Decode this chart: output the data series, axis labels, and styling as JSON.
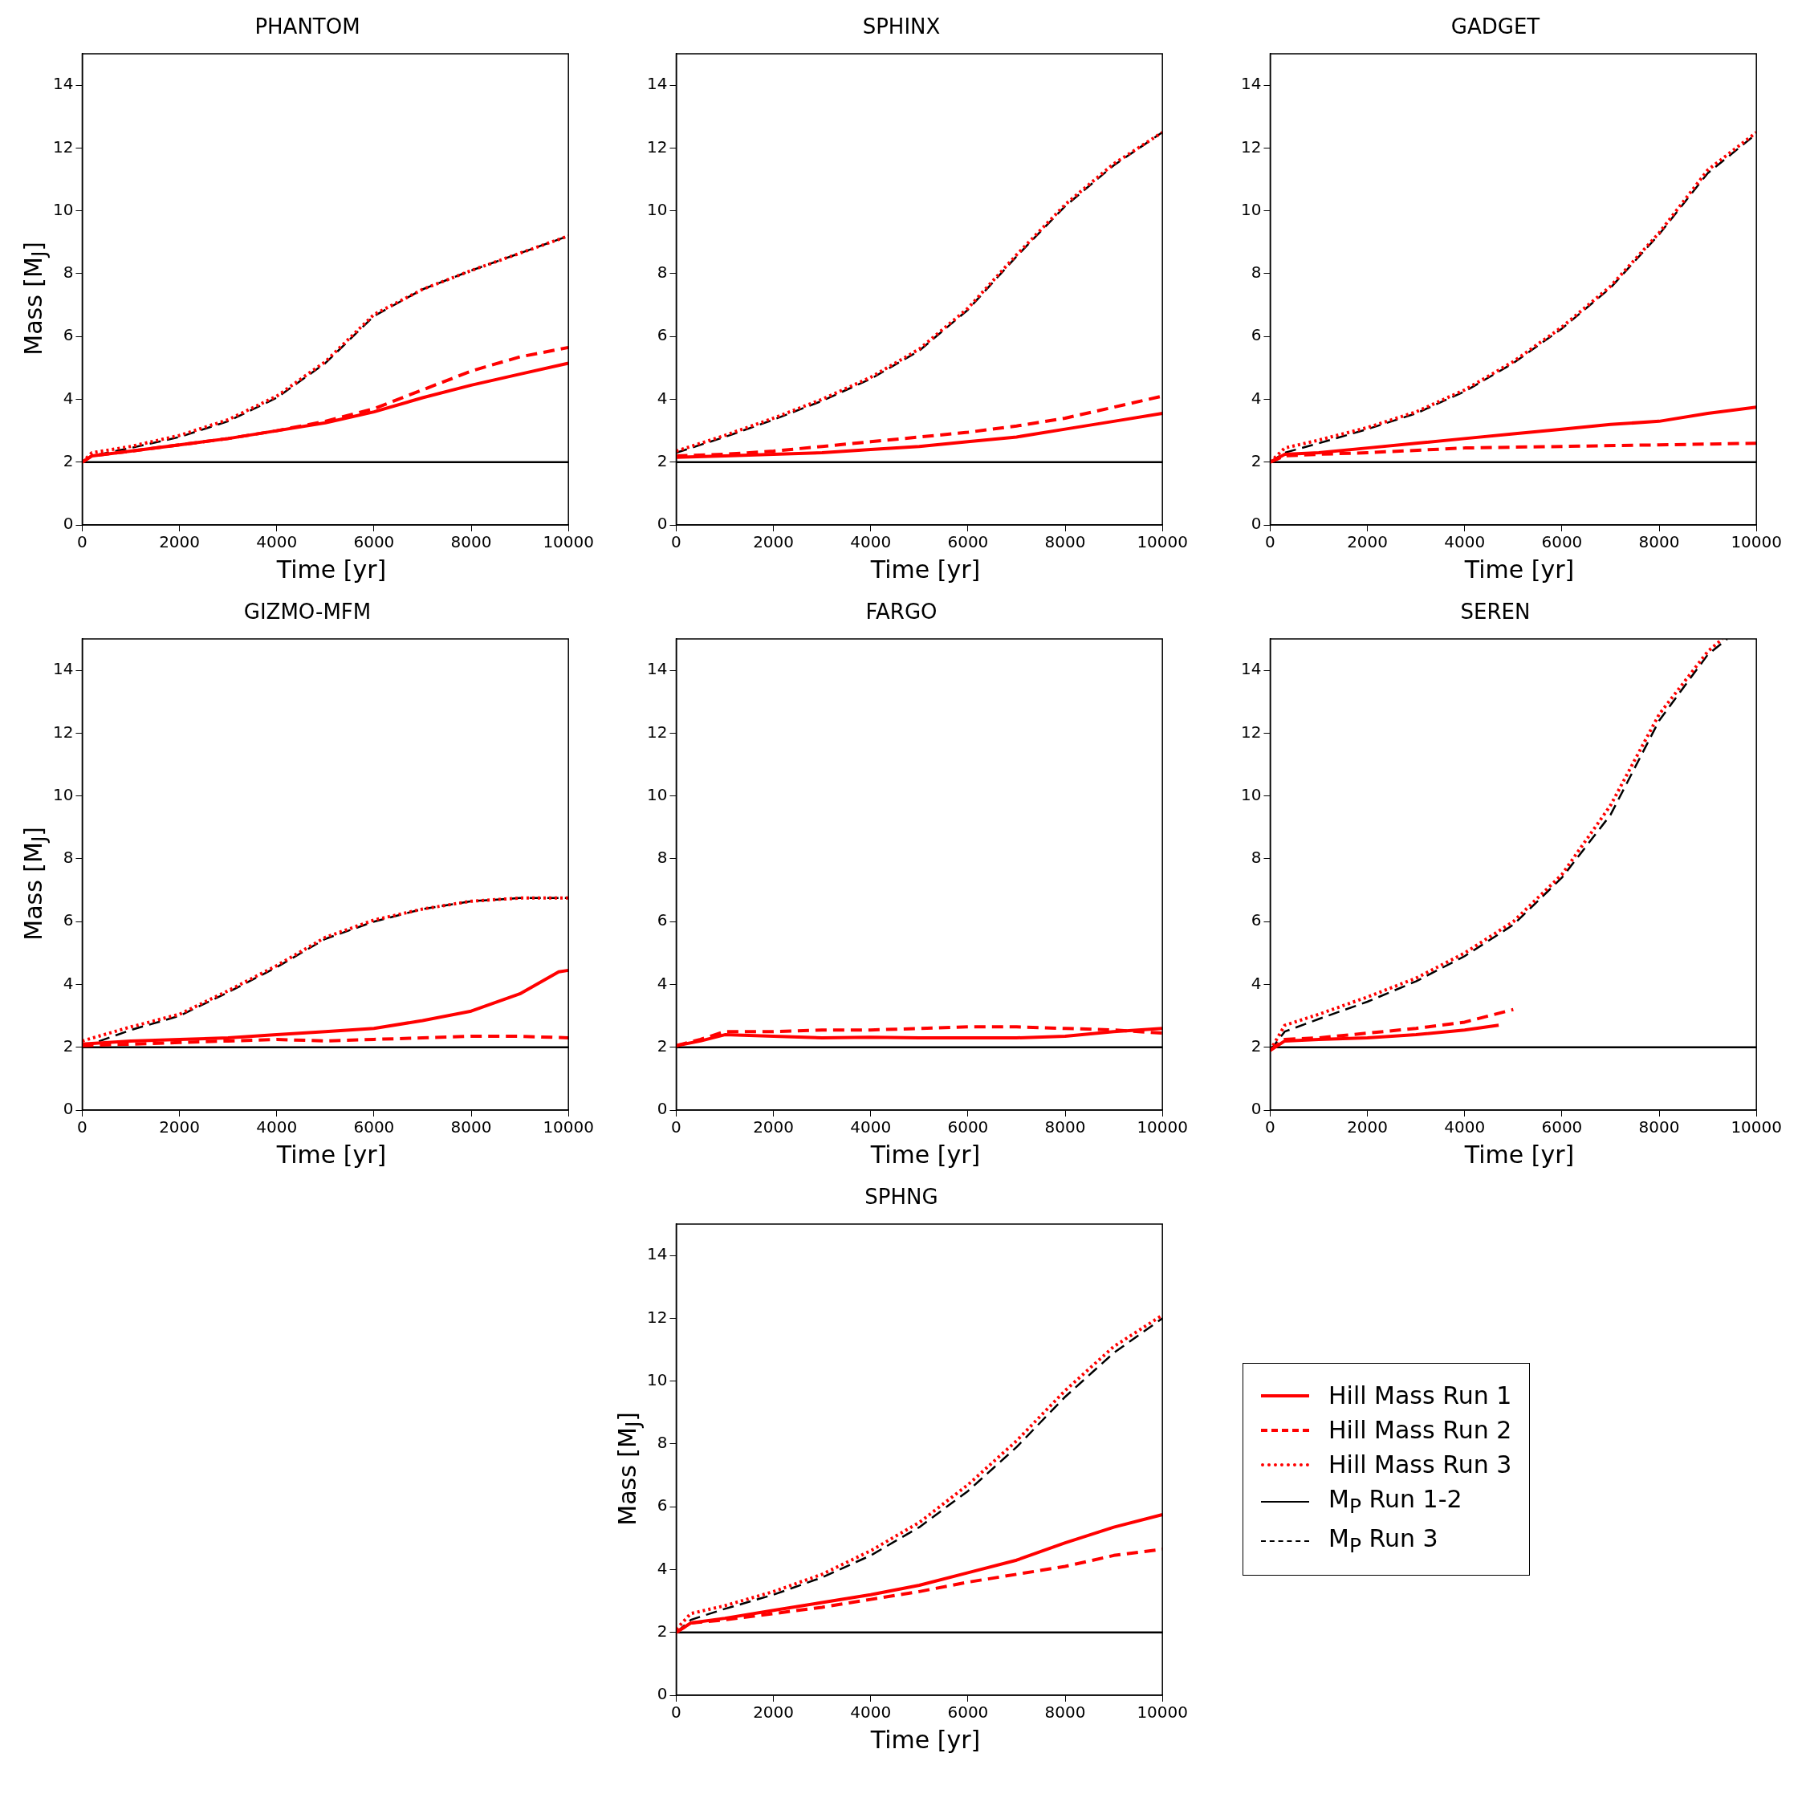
{
  "chart_data": [
    {
      "type": "line",
      "title": "PHANTOM",
      "xlabel": "Time [yr]",
      "ylabel": "Mass [M$_{J}$]",
      "xlim": [
        0,
        10000
      ],
      "ylim": [
        0,
        15
      ],
      "xticks": [
        0,
        2000,
        4000,
        6000,
        8000,
        10000
      ],
      "yticks": [
        0,
        2,
        4,
        6,
        8,
        10,
        12,
        14
      ],
      "grid": false,
      "series": [
        {
          "color": "#ff0000",
          "line_style": "solid",
          "x": [
            0,
            200,
            1000,
            2000,
            3000,
            4000,
            5000,
            6000,
            7000,
            8000,
            9000,
            10000
          ],
          "values": [
            2.0,
            2.2,
            2.35,
            2.55,
            2.75,
            3.0,
            3.25,
            3.6,
            4.05,
            4.45,
            4.8,
            5.15
          ]
        },
        {
          "color": "#ff0000",
          "line_style": "dashed",
          "x": [
            0,
            200,
            1000,
            2000,
            3000,
            4000,
            5000,
            6000,
            7000,
            8000,
            9000,
            10000
          ],
          "values": [
            2.0,
            2.2,
            2.35,
            2.55,
            2.75,
            3.0,
            3.3,
            3.7,
            4.3,
            4.9,
            5.35,
            5.65
          ]
        },
        {
          "color": "#ff0000",
          "line_style": "dotted",
          "x": [
            0,
            200,
            1000,
            2000,
            3000,
            4000,
            5000,
            6000,
            7000,
            8000,
            9000,
            10000
          ],
          "values": [
            2.0,
            2.3,
            2.5,
            2.85,
            3.35,
            4.1,
            5.2,
            6.7,
            7.5,
            8.1,
            8.65,
            9.2
          ]
        },
        {
          "color": "#000000",
          "line_style": "solid",
          "x": [
            0,
            10000
          ],
          "values": [
            2,
            2
          ]
        },
        {
          "color": "#000000",
          "line_style": "dashed",
          "x": [
            0,
            200,
            1000,
            2000,
            3000,
            4000,
            5000,
            6000,
            7000,
            8000,
            9000,
            10000
          ],
          "values": [
            2.0,
            2.2,
            2.45,
            2.8,
            3.3,
            4.05,
            5.15,
            6.65,
            7.5,
            8.1,
            8.65,
            9.2
          ]
        }
      ]
    },
    {
      "type": "line",
      "title": "SPHINX",
      "xlabel": "Time [yr]",
      "xlim": [
        0,
        10000
      ],
      "ylim": [
        0,
        15
      ],
      "xticks": [
        0,
        2000,
        4000,
        6000,
        8000,
        10000
      ],
      "yticks": [
        0,
        2,
        4,
        6,
        8,
        10,
        12,
        14
      ],
      "grid": false,
      "series": [
        {
          "color": "#ff0000",
          "line_style": "solid",
          "x": [
            0,
            1000,
            2000,
            3000,
            4000,
            5000,
            6000,
            7000,
            8000,
            9000,
            10000
          ],
          "values": [
            2.15,
            2.2,
            2.25,
            2.3,
            2.4,
            2.5,
            2.65,
            2.8,
            3.05,
            3.3,
            3.55
          ]
        },
        {
          "color": "#ff0000",
          "line_style": "dashed",
          "x": [
            0,
            1000,
            2000,
            3000,
            4000,
            5000,
            6000,
            7000,
            8000,
            9000,
            10000
          ],
          "values": [
            2.2,
            2.25,
            2.35,
            2.5,
            2.65,
            2.8,
            2.95,
            3.15,
            3.4,
            3.75,
            4.1
          ]
        },
        {
          "color": "#ff0000",
          "line_style": "dotted",
          "x": [
            0,
            1000,
            2000,
            3000,
            4000,
            5000,
            6000,
            7000,
            8000,
            9000,
            10000
          ],
          "values": [
            2.35,
            2.85,
            3.4,
            4.0,
            4.7,
            5.6,
            6.9,
            8.6,
            10.2,
            11.5,
            12.5
          ]
        },
        {
          "color": "#000000",
          "line_style": "solid",
          "x": [
            0,
            10000
          ],
          "values": [
            2,
            2
          ]
        },
        {
          "color": "#000000",
          "line_style": "dashed",
          "x": [
            0,
            1000,
            2000,
            3000,
            4000,
            5000,
            6000,
            7000,
            8000,
            9000,
            10000
          ],
          "values": [
            2.3,
            2.8,
            3.35,
            3.95,
            4.65,
            5.55,
            6.85,
            8.55,
            10.15,
            11.45,
            12.5
          ]
        }
      ]
    },
    {
      "type": "line",
      "title": "GADGET",
      "xlabel": "Time [yr]",
      "xlim": [
        0,
        10000
      ],
      "ylim": [
        0,
        15
      ],
      "xticks": [
        0,
        2000,
        4000,
        6000,
        8000,
        10000
      ],
      "yticks": [
        0,
        2,
        4,
        6,
        8,
        10,
        12,
        14
      ],
      "grid": false,
      "series": [
        {
          "color": "#ff0000",
          "line_style": "solid",
          "x": [
            0,
            300,
            1000,
            2000,
            3000,
            4000,
            5000,
            6000,
            7000,
            8000,
            9000,
            10000
          ],
          "values": [
            2.0,
            2.25,
            2.3,
            2.45,
            2.6,
            2.75,
            2.9,
            3.05,
            3.2,
            3.3,
            3.55,
            3.75
          ]
        },
        {
          "color": "#ff0000",
          "line_style": "dashed",
          "x": [
            0,
            300,
            1000,
            2000,
            4000,
            6000,
            8000,
            10000
          ],
          "values": [
            2.0,
            2.2,
            2.25,
            2.3,
            2.45,
            2.5,
            2.55,
            2.6
          ]
        },
        {
          "color": "#ff0000",
          "line_style": "dotted",
          "x": [
            0,
            300,
            1000,
            2000,
            3000,
            4000,
            5000,
            6000,
            7000,
            8000,
            9000,
            10000
          ],
          "values": [
            2.0,
            2.45,
            2.7,
            3.1,
            3.6,
            4.3,
            5.2,
            6.3,
            7.6,
            9.3,
            11.3,
            12.5
          ]
        },
        {
          "color": "#000000",
          "line_style": "solid",
          "x": [
            0,
            10000
          ],
          "values": [
            2,
            2
          ]
        },
        {
          "color": "#000000",
          "line_style": "dashed",
          "x": [
            0,
            300,
            1000,
            2000,
            3000,
            4000,
            5000,
            6000,
            7000,
            8000,
            9000,
            10000
          ],
          "values": [
            2.0,
            2.3,
            2.6,
            3.05,
            3.55,
            4.25,
            5.15,
            6.25,
            7.55,
            9.25,
            11.2,
            12.45
          ]
        }
      ]
    },
    {
      "type": "line",
      "title": "GIZMO-MFM",
      "xlabel": "Time [yr]",
      "ylabel": "Mass [M$_{J}$]",
      "xlim": [
        0,
        10000
      ],
      "ylim": [
        0,
        15
      ],
      "xticks": [
        0,
        2000,
        4000,
        6000,
        8000,
        10000
      ],
      "yticks": [
        0,
        2,
        4,
        6,
        8,
        10,
        12,
        14
      ],
      "grid": false,
      "series": [
        {
          "color": "#ff0000",
          "line_style": "solid",
          "x": [
            0,
            1000,
            2000,
            3000,
            4000,
            5000,
            6000,
            7000,
            8000,
            9000,
            9800,
            10000
          ],
          "values": [
            2.1,
            2.2,
            2.25,
            2.3,
            2.4,
            2.5,
            2.6,
            2.85,
            3.15,
            3.7,
            4.4,
            4.45
          ]
        },
        {
          "color": "#ff0000",
          "line_style": "dashed",
          "x": [
            0,
            1000,
            2000,
            3000,
            4000,
            5000,
            6000,
            7000,
            8000,
            9000,
            10000
          ],
          "values": [
            2.05,
            2.1,
            2.15,
            2.2,
            2.25,
            2.2,
            2.25,
            2.3,
            2.35,
            2.35,
            2.3
          ]
        },
        {
          "color": "#ff0000",
          "line_style": "dotted",
          "x": [
            0,
            1000,
            2000,
            3000,
            4000,
            5000,
            6000,
            7000,
            8000,
            9000,
            10000
          ],
          "values": [
            2.2,
            2.65,
            3.05,
            3.8,
            4.6,
            5.5,
            6.05,
            6.4,
            6.65,
            6.75,
            6.75
          ]
        },
        {
          "color": "#000000",
          "line_style": "solid",
          "x": [
            0,
            10000
          ],
          "values": [
            2,
            2
          ]
        },
        {
          "color": "#000000",
          "line_style": "dashed",
          "x": [
            0,
            1000,
            2000,
            3000,
            4000,
            5000,
            6000,
            7000,
            8000,
            9000,
            10000
          ],
          "values": [
            2.0,
            2.55,
            3.0,
            3.75,
            4.55,
            5.45,
            6.0,
            6.4,
            6.65,
            6.75,
            6.75
          ]
        }
      ]
    },
    {
      "type": "line",
      "title": "FARGO",
      "xlabel": "Time [yr]",
      "xlim": [
        0,
        10000
      ],
      "ylim": [
        0,
        15
      ],
      "xticks": [
        0,
        2000,
        4000,
        6000,
        8000,
        10000
      ],
      "yticks": [
        0,
        2,
        4,
        6,
        8,
        10,
        12,
        14
      ],
      "grid": false,
      "series": [
        {
          "color": "#ff0000",
          "line_style": "solid",
          "x": [
            0,
            500,
            1000,
            2000,
            3000,
            4000,
            5000,
            6000,
            7000,
            8000,
            9000,
            10000
          ],
          "values": [
            2.05,
            2.2,
            2.4,
            2.35,
            2.3,
            2.32,
            2.3,
            2.3,
            2.3,
            2.35,
            2.5,
            2.6
          ]
        },
        {
          "color": "#ff0000",
          "line_style": "dashed",
          "x": [
            0,
            500,
            1000,
            2000,
            3000,
            4000,
            5000,
            6000,
            7000,
            8000,
            9000,
            10000
          ],
          "values": [
            2.05,
            2.25,
            2.5,
            2.5,
            2.55,
            2.55,
            2.6,
            2.65,
            2.65,
            2.6,
            2.55,
            2.45
          ]
        },
        {
          "color": "#000000",
          "line_style": "solid",
          "x": [
            0,
            10000
          ],
          "values": [
            2,
            2
          ]
        }
      ]
    },
    {
      "type": "line",
      "title": "SEREN",
      "xlabel": "Time [yr]",
      "xlim": [
        0,
        10000
      ],
      "ylim": [
        0,
        15
      ],
      "xticks": [
        0,
        2000,
        4000,
        6000,
        8000,
        10000
      ],
      "yticks": [
        0,
        2,
        4,
        6,
        8,
        10,
        12,
        14
      ],
      "grid": false,
      "series": [
        {
          "color": "#ff0000",
          "line_style": "solid",
          "x": [
            0,
            300,
            1000,
            2000,
            3000,
            4000,
            4700
          ],
          "values": [
            1.9,
            2.2,
            2.25,
            2.3,
            2.4,
            2.55,
            2.7
          ]
        },
        {
          "color": "#ff0000",
          "line_style": "dashed",
          "x": [
            0,
            300,
            1000,
            2000,
            3000,
            4000,
            5000
          ],
          "values": [
            1.9,
            2.25,
            2.3,
            2.45,
            2.6,
            2.8,
            3.2
          ]
        },
        {
          "color": "#ff0000",
          "line_style": "dotted",
          "x": [
            0,
            300,
            1000,
            2000,
            3000,
            4000,
            5000,
            6000,
            7000,
            8000,
            9000,
            9300
          ],
          "values": [
            1.9,
            2.7,
            3.05,
            3.6,
            4.2,
            5.0,
            6.0,
            7.5,
            9.7,
            12.6,
            14.6,
            15.0
          ]
        },
        {
          "color": "#000000",
          "line_style": "solid",
          "x": [
            0,
            10000
          ],
          "values": [
            2,
            2
          ]
        },
        {
          "color": "#000000",
          "line_style": "dashed",
          "x": [
            0,
            300,
            1000,
            2000,
            3000,
            4000,
            5000,
            6000,
            7000,
            8000,
            9000,
            9400
          ],
          "values": [
            1.9,
            2.5,
            2.9,
            3.45,
            4.1,
            4.9,
            5.9,
            7.4,
            9.4,
            12.4,
            14.5,
            15.0
          ]
        }
      ]
    },
    {
      "type": "line",
      "title": "SPHNG",
      "xlabel": "Time [yr]",
      "ylabel": "Mass [M$_{J}$]",
      "xlim": [
        0,
        10000
      ],
      "ylim": [
        0,
        15
      ],
      "xticks": [
        0,
        2000,
        4000,
        6000,
        8000,
        10000
      ],
      "yticks": [
        0,
        2,
        4,
        6,
        8,
        10,
        12,
        14
      ],
      "grid": false,
      "legend": "right",
      "series": [
        {
          "name": "Hill Mass Run 1",
          "color": "#ff0000",
          "line_style": "solid",
          "x": [
            0,
            300,
            1000,
            2000,
            3000,
            4000,
            5000,
            6000,
            7000,
            8000,
            9000,
            10000
          ],
          "values": [
            2.0,
            2.3,
            2.45,
            2.7,
            2.95,
            3.2,
            3.5,
            3.9,
            4.3,
            4.85,
            5.35,
            5.75
          ]
        },
        {
          "name": "Hill Mass Run 2",
          "color": "#ff0000",
          "line_style": "dashed",
          "x": [
            0,
            300,
            1000,
            2000,
            3000,
            4000,
            5000,
            6000,
            7000,
            8000,
            9000,
            10000
          ],
          "values": [
            2.0,
            2.3,
            2.4,
            2.6,
            2.8,
            3.05,
            3.3,
            3.6,
            3.85,
            4.1,
            4.45,
            4.65
          ]
        },
        {
          "name": "Hill Mass Run 3",
          "color": "#ff0000",
          "line_style": "dotted",
          "x": [
            0,
            300,
            1000,
            2000,
            3000,
            4000,
            5000,
            6000,
            7000,
            8000,
            9000,
            10000
          ],
          "values": [
            2.1,
            2.6,
            2.85,
            3.3,
            3.85,
            4.6,
            5.5,
            6.7,
            8.1,
            9.7,
            11.1,
            12.1
          ]
        },
        {
          "name": "M$_{P}$ Run 1-2",
          "color": "#000000",
          "line_style": "solid",
          "x": [
            0,
            10000
          ],
          "values": [
            2,
            2
          ]
        },
        {
          "name": "M$_{P}$ Run 3",
          "color": "#000000",
          "line_style": "dashed",
          "x": [
            0,
            300,
            1000,
            2000,
            3000,
            4000,
            5000,
            6000,
            7000,
            8000,
            9000,
            10000
          ],
          "values": [
            2.0,
            2.4,
            2.75,
            3.2,
            3.75,
            4.45,
            5.35,
            6.5,
            7.9,
            9.5,
            10.9,
            12.0
          ]
        }
      ]
    }
  ]
}
